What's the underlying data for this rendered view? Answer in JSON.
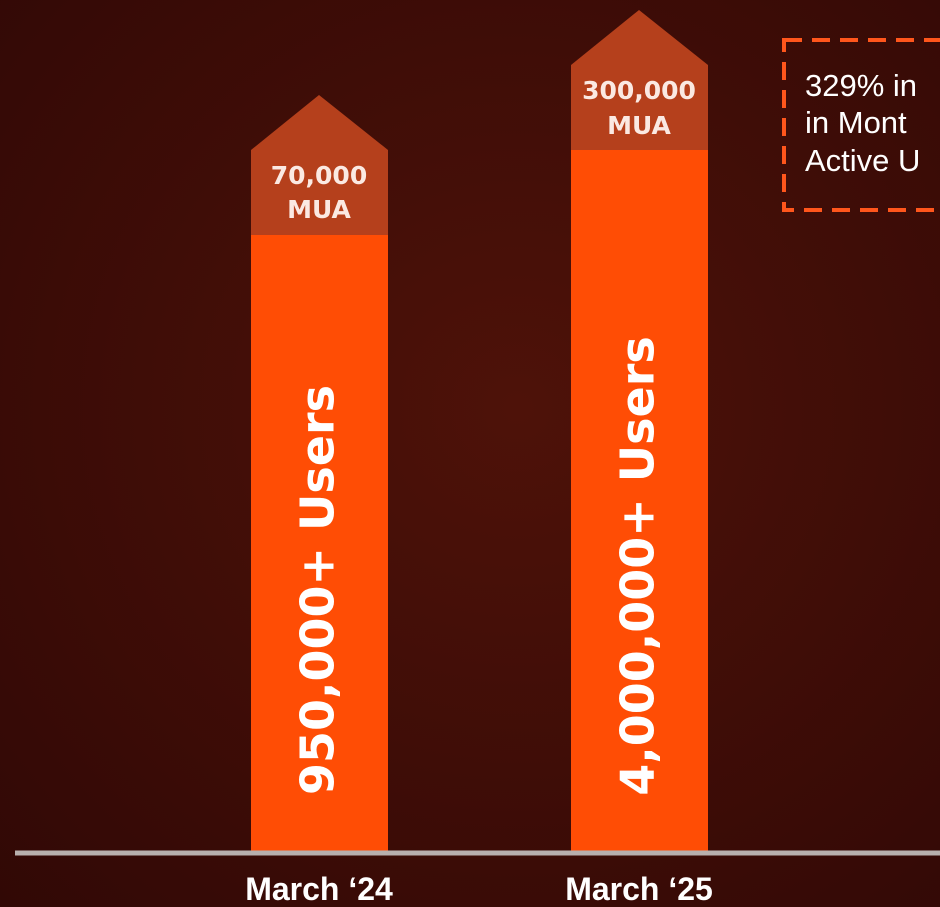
{
  "bars": [
    {
      "cap_lines": [
        "70,000",
        "MUA"
      ],
      "label": "950,000+ Users",
      "category": "March ‘24"
    },
    {
      "cap_lines": [
        "300,000",
        "MUA"
      ],
      "label": "4,000,000+ Users",
      "category": "March ‘25"
    }
  ],
  "annotation": {
    "lines": [
      "329% in",
      "in Mont",
      "Active U"
    ]
  }
}
